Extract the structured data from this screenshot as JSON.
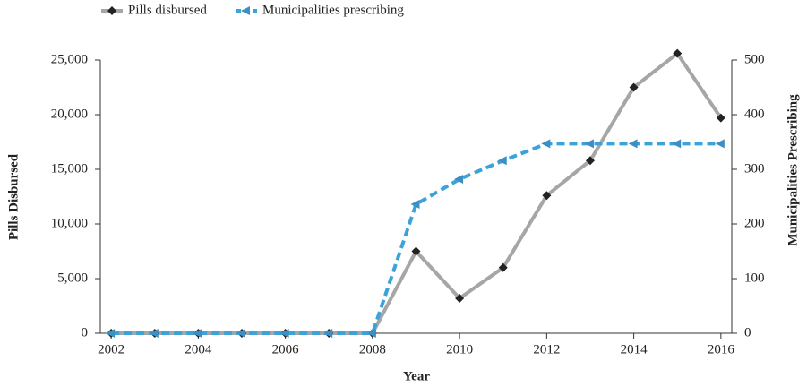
{
  "chart_data": {
    "type": "line",
    "x_label": "Year",
    "y_label": "Pills Disbursed",
    "y2_label": "Municipalities Prescribing",
    "x": [
      2002,
      2003,
      2004,
      2005,
      2006,
      2007,
      2008,
      2009,
      2010,
      2011,
      2012,
      2013,
      2014,
      2015,
      2016
    ],
    "series": [
      {
        "name": "Pills disbursed",
        "color": "#a6a6a6",
        "marker_color": "#222222",
        "marker": "diamond",
        "dash": false,
        "values": [
          0,
          0,
          0,
          0,
          0,
          0,
          0,
          7500,
          3200,
          6000,
          12600,
          15800,
          22500,
          25600,
          19700
        ]
      },
      {
        "name": "Municipalities prescribing",
        "color": "#3ba3d9",
        "marker_color": "#3b8fc4",
        "marker": "triangle",
        "dash": true,
        "axis": "y2",
        "values": [
          0,
          0,
          0,
          0,
          0,
          0,
          0,
          236,
          282,
          316,
          347,
          347,
          347,
          347,
          347
        ]
      }
    ],
    "xlim": [
      2001.75,
      2016.25
    ],
    "xticks": [
      2002,
      2004,
      2006,
      2008,
      2010,
      2012,
      2014,
      2016
    ],
    "ylim": [
      0,
      25000
    ],
    "yticks": [
      0,
      {
        "value": 5000,
        "label": "5,000"
      },
      {
        "value": 10000,
        "label": "10,000"
      },
      {
        "value": 15000,
        "label": "15,000"
      },
      {
        "value": 20000,
        "label": "20,000"
      },
      {
        "value": 25000,
        "label": "25,000"
      }
    ],
    "y2lim": [
      0,
      500
    ],
    "y2ticks": [
      0,
      100,
      200,
      300,
      400,
      500
    ],
    "legend": "top-left"
  }
}
